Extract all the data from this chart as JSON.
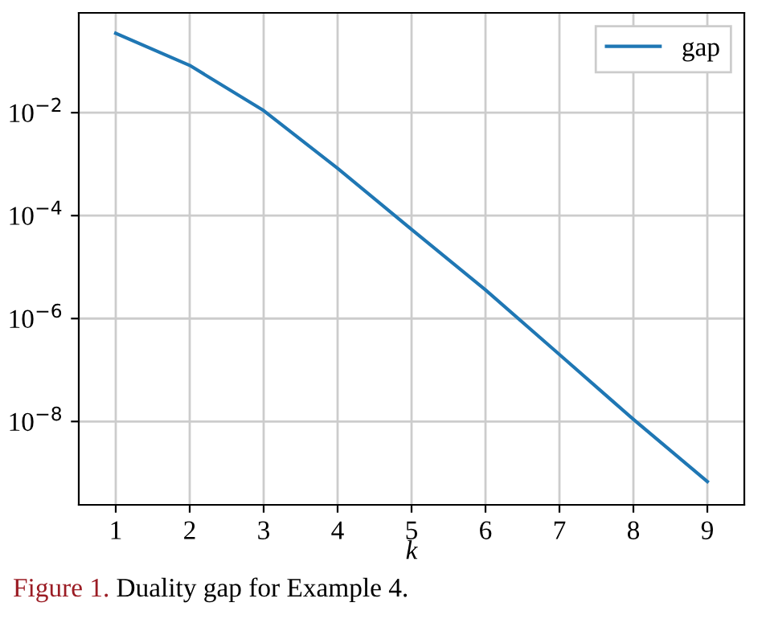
{
  "chart_data": {
    "type": "line",
    "xlabel": "k",
    "log": "y",
    "x": [
      1,
      2,
      3,
      4,
      5,
      6,
      7,
      8,
      9
    ],
    "series": [
      {
        "name": "gap",
        "color": "#1f77b4",
        "values": [
          0.35,
          0.083,
          0.011,
          0.00083,
          5.4e-05,
          3.6e-06,
          2e-07,
          1.1e-08,
          6.8e-10
        ]
      }
    ],
    "xlim": [
      0.5,
      9.5
    ],
    "xticks": [
      1,
      2,
      3,
      4,
      5,
      6,
      7,
      8,
      9
    ],
    "ylim": [
      2.4e-10,
      0.87
    ],
    "yticks": [
      {
        "value": 0.01,
        "label": "10$^{−2}$"
      },
      {
        "value": 0.0001,
        "label": "10$^{−4}$"
      },
      {
        "value": 1e-06,
        "label": "10$^{−6}$"
      },
      {
        "value": 1e-08,
        "label": "10$^{−8}$"
      }
    ],
    "grid": true,
    "legend": "top right",
    "marker": "none",
    "line_style": "solid",
    "annotations": [
      "Figure 1.",
      "Duality gap for Example 4."
    ]
  }
}
